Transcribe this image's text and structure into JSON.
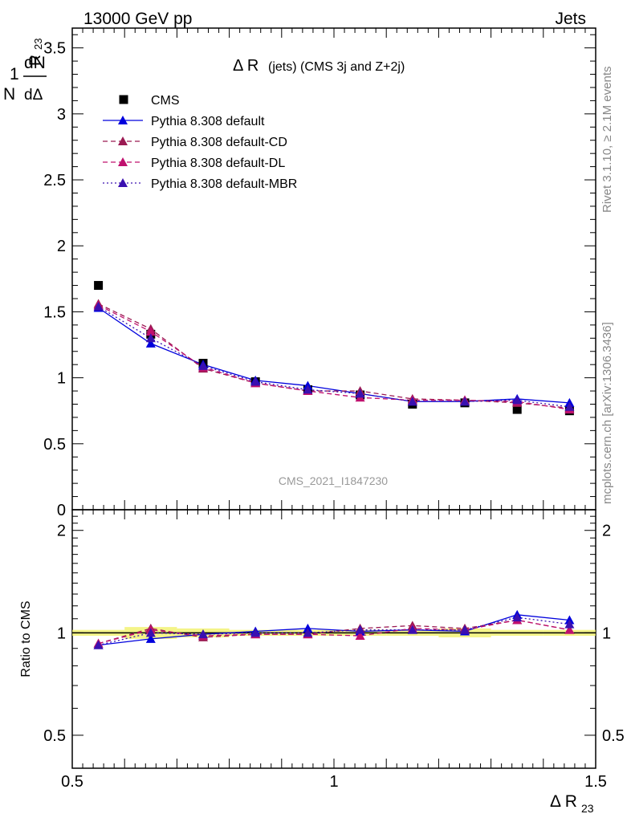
{
  "header": {
    "left": "13000 GeV pp",
    "right": "Jets"
  },
  "side_labels": {
    "rivet": "Rivet 3.1.10, ≥ 2.1M events",
    "mcplots": "mcplots.cern.ch [arXiv:1306.3436]"
  },
  "chart_data": [
    {
      "type": "scatter",
      "panel": "main",
      "title_main": "Δ R",
      "title_sub": "(jets) (CMS 3j and Z+2j)",
      "ylabel": "1/N dN/dΔ R_23",
      "ylabel_parts": {
        "one": "1",
        "dN": "dN",
        "N": "N",
        "d": "dΔ",
        "R": "R",
        "sub": "23"
      },
      "watermark": "CMS_2021_I1847230",
      "xlim": [
        0.5,
        1.5
      ],
      "ylim": [
        0,
        3.65
      ],
      "yticks": [
        0,
        0.5,
        1,
        1.5,
        2,
        2.5,
        3,
        3.5
      ],
      "ytick_labels": [
        "0",
        "0.5",
        "1",
        "1.5",
        "2",
        "2.5",
        "3",
        "3.5"
      ],
      "x": [
        0.55,
        0.65,
        0.75,
        0.85,
        0.95,
        1.05,
        1.15,
        1.25,
        1.35,
        1.45
      ],
      "series": [
        {
          "name": "CMS",
          "color": "#000000",
          "marker": "square",
          "line": "none",
          "values": [
            1.7,
            1.33,
            1.11,
            0.97,
            0.91,
            0.87,
            0.8,
            0.81,
            0.76,
            0.75
          ]
        },
        {
          "name": "Pythia 8.308 default",
          "color": "#0000dd",
          "marker": "triangle",
          "line": "solid",
          "values": [
            1.53,
            1.26,
            1.1,
            0.98,
            0.94,
            0.88,
            0.82,
            0.82,
            0.84,
            0.81
          ]
        },
        {
          "name": "Pythia 8.308 default-CD",
          "color": "#9b1a52",
          "marker": "triangle",
          "line": "dashed",
          "values": [
            1.56,
            1.37,
            1.07,
            0.96,
            0.9,
            0.9,
            0.84,
            0.83,
            0.81,
            0.77
          ]
        },
        {
          "name": "Pythia 8.308 default-DL",
          "color": "#c0106e",
          "marker": "triangle",
          "line": "dashed",
          "values": [
            1.55,
            1.35,
            1.08,
            0.96,
            0.9,
            0.85,
            0.83,
            0.83,
            0.82,
            0.76
          ]
        },
        {
          "name": "Pythia 8.308 default-MBR",
          "color": "#3a10b0",
          "marker": "triangle",
          "line": "dotted",
          "values": [
            1.54,
            1.3,
            1.09,
            0.97,
            0.91,
            0.88,
            0.82,
            0.82,
            0.83,
            0.78
          ]
        }
      ]
    },
    {
      "type": "line",
      "panel": "ratio",
      "ylabel": "Ratio to CMS",
      "xlabel": "Δ R",
      "xlabel_sub": "23",
      "xlim": [
        0.5,
        1.5
      ],
      "xticks": [
        0.5,
        1,
        1.5
      ],
      "xtick_labels": [
        "0.5",
        "1",
        "1.5"
      ],
      "ylim": [
        0.4,
        2.3
      ],
      "yticks": [
        0.5,
        1,
        2
      ],
      "ytick_labels": [
        "0.5",
        "1",
        "2"
      ],
      "x": [
        0.55,
        0.65,
        0.75,
        0.85,
        0.95,
        1.05,
        1.15,
        1.25,
        1.35,
        1.45
      ],
      "band_halfwidth": [
        0.02,
        0.04,
        0.03,
        0.02,
        0.02,
        0.02,
        0.02,
        0.03,
        0.02,
        0.02
      ],
      "band_color": "#f0f060",
      "series": [
        {
          "name": "Pythia 8.308 default",
          "color": "#0000dd",
          "line": "solid",
          "values": [
            0.92,
            0.96,
            0.99,
            1.01,
            1.03,
            1.01,
            1.02,
            1.01,
            1.13,
            1.09
          ]
        },
        {
          "name": "Pythia 8.308 default-CD",
          "color": "#9b1a52",
          "line": "dashed",
          "values": [
            0.93,
            1.03,
            0.97,
            0.99,
            0.99,
            1.03,
            1.05,
            1.03,
            1.09,
            1.02
          ]
        },
        {
          "name": "Pythia 8.308 default-DL",
          "color": "#c0106e",
          "line": "dashed",
          "values": [
            0.93,
            1.02,
            0.98,
            0.99,
            0.99,
            0.98,
            1.03,
            1.02,
            1.09,
            1.02
          ]
        },
        {
          "name": "Pythia 8.308 default-MBR",
          "color": "#3a10b0",
          "line": "dotted",
          "values": [
            0.92,
            1.0,
            0.99,
            1.0,
            1.0,
            1.02,
            1.02,
            1.02,
            1.11,
            1.06
          ]
        }
      ]
    }
  ]
}
